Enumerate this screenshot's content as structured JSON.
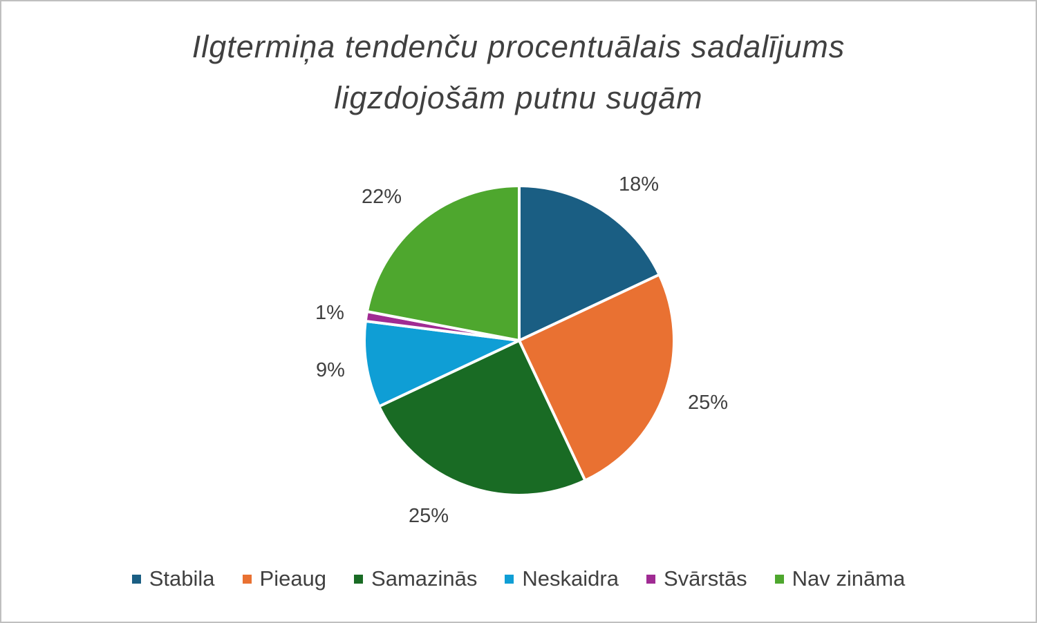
{
  "chart_data": {
    "type": "pie",
    "title_lines": [
      "Ilgtermiņa tendenču procentuālais sadalījums",
      "ligzdojošām putnu sugām"
    ],
    "slices": [
      {
        "name": "Stabila",
        "value": 18,
        "label": "18%",
        "color": "#1a5e83"
      },
      {
        "name": "Pieaug",
        "value": 25,
        "label": "25%",
        "color": "#e97132"
      },
      {
        "name": "Samazinās",
        "value": 25,
        "label": "25%",
        "color": "#196b24"
      },
      {
        "name": "Neskaidra",
        "value": 9,
        "label": "9%",
        "color": "#0f9ed5"
      },
      {
        "name": "Svārstās",
        "value": 1,
        "label": "1%",
        "color": "#a02b93"
      },
      {
        "name": "Nav zināma",
        "value": 22,
        "label": "22%",
        "color": "#4ea72e"
      }
    ],
    "legend_position": "bottom"
  }
}
